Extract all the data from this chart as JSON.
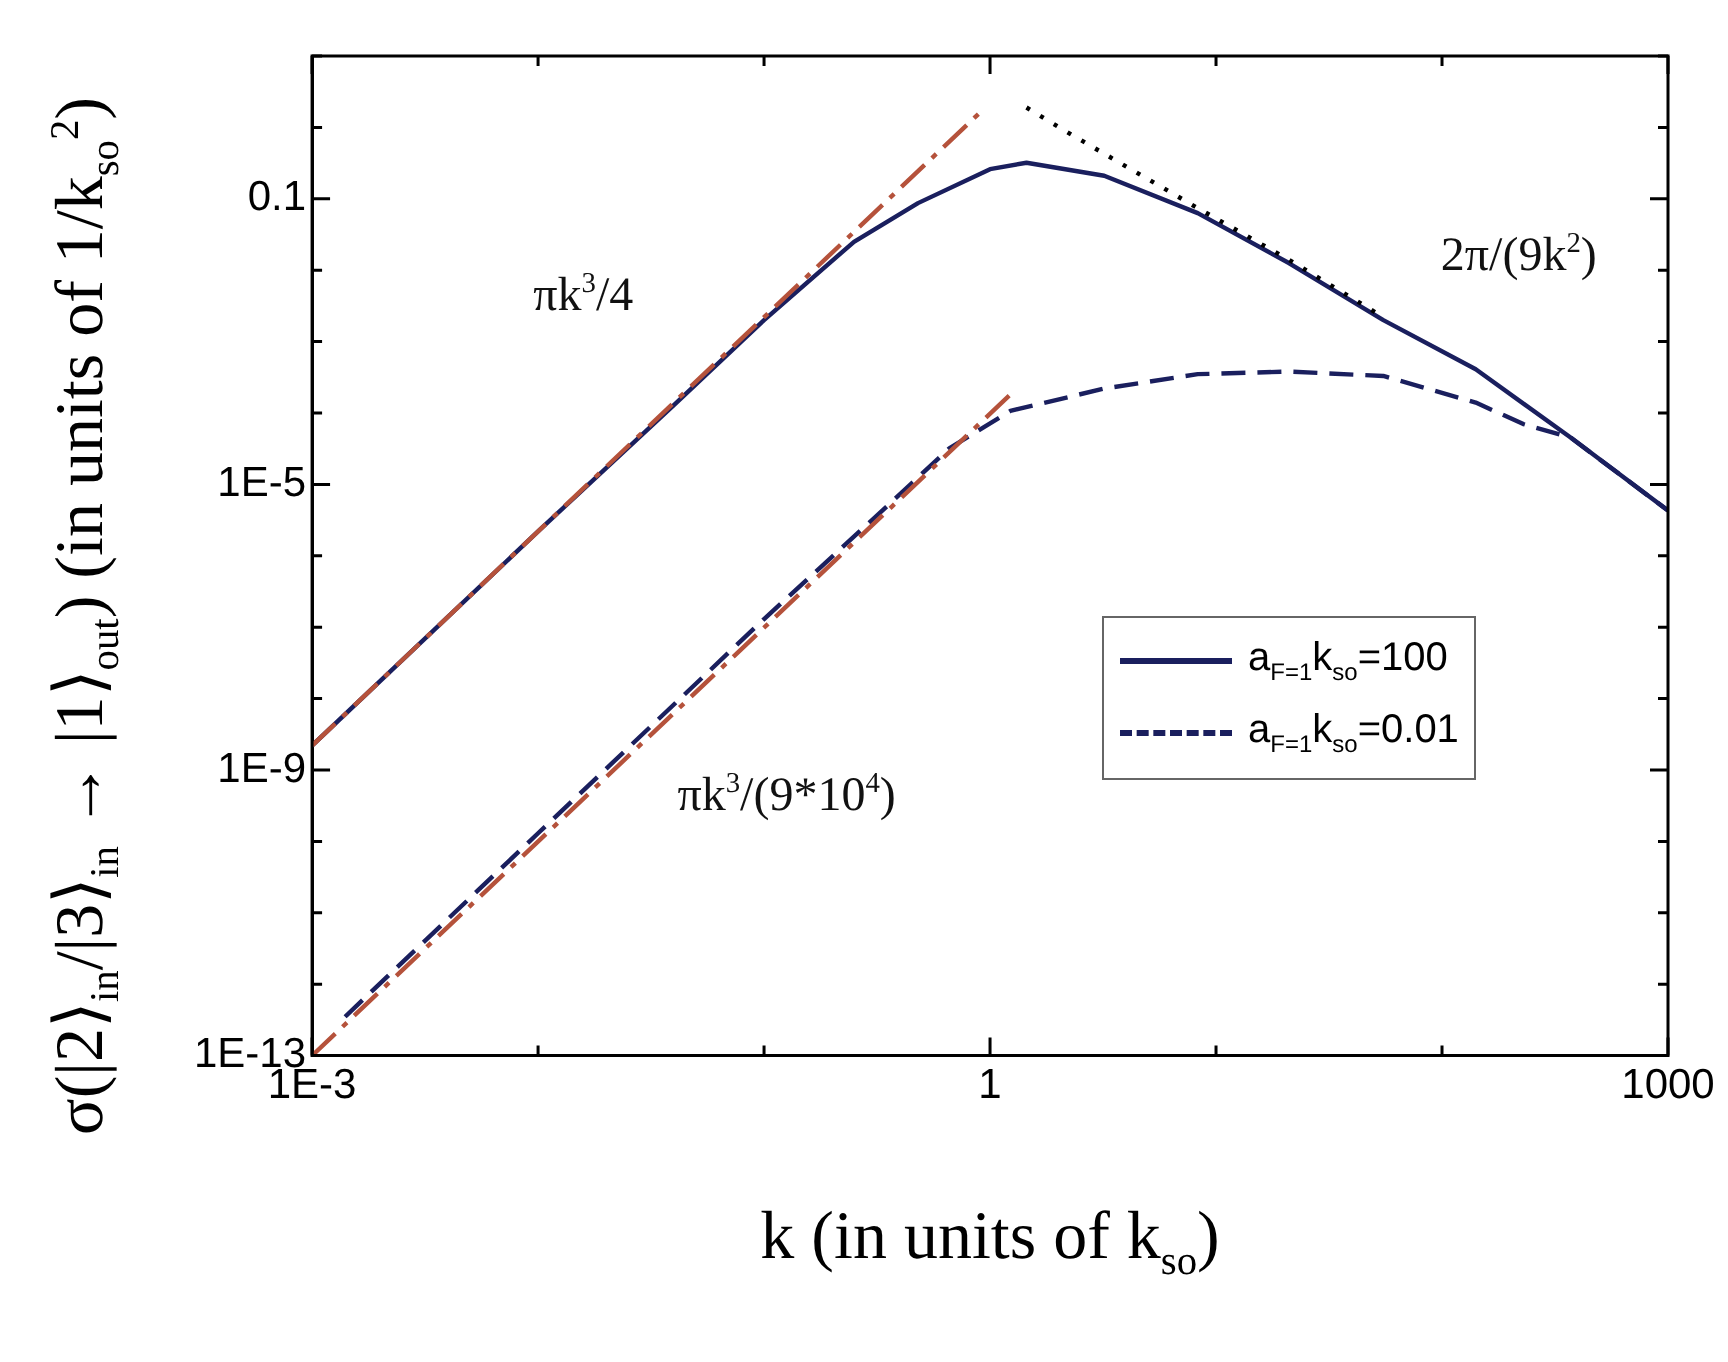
{
  "chart_data": {
    "type": "line",
    "xlabel": "k (in units of k$_{so}$)",
    "ylabel": "σ(|2⟩$_{in}$/|3⟩$_{in}$ → |1⟩$_{out}$) (in units of 1/k$_{so}$$^{2}$)",
    "log": "xy",
    "xlim": [
      0.001,
      1000
    ],
    "xticks": [
      {
        "value": 0.001,
        "label": "1E-3"
      },
      {
        "value": 0.01,
        "label": null
      },
      {
        "value": 0.1,
        "label": null
      },
      1,
      {
        "value": 10,
        "label": null
      },
      {
        "value": 100,
        "label": null
      },
      1000
    ],
    "ylim": [
      1e-13,
      10
    ],
    "yticks": [
      {
        "value": 1e-13,
        "label": "1E-13"
      },
      {
        "value": 1e-12,
        "label": null
      },
      {
        "value": 1e-11,
        "label": null
      },
      {
        "value": 1e-10,
        "label": null
      },
      {
        "value": 1e-09,
        "label": "1E-9"
      },
      {
        "value": 1e-08,
        "label": null
      },
      {
        "value": 1e-07,
        "label": null
      },
      {
        "value": 1e-06,
        "label": null
      },
      {
        "value": 1e-05,
        "label": "1E-5"
      },
      {
        "value": 0.0001,
        "label": null
      },
      {
        "value": 0.001,
        "label": null
      },
      {
        "value": 0.01,
        "label": null
      },
      0.1,
      {
        "value": 1,
        "label": null
      },
      {
        "value": 10,
        "label": null
      }
    ],
    "grid": false,
    "legend": "right",
    "marker": "none",
    "series": [
      {
        "color": "#b5523b",
        "line_style": "dashdot",
        "x": [
          0.001,
          0.89
        ],
        "values": [
          2.2e-09,
          1.55
        ]
      },
      {
        "color": "#b5523b",
        "line_style": "dashdot",
        "x": [
          0.001,
          1.29
        ],
        "values": [
          1e-13,
          0.00021
        ]
      },
      {
        "color": "#000000",
        "line_style": "dotted",
        "x": [
          1.45,
          2.1,
          8.3,
          21,
          55
        ],
        "values": [
          1.9,
          0.93,
          0.074,
          0.014,
          0.0022
        ]
      },
      {
        "name": "a$_{F=1}$k$_{so}$=100",
        "color": "#1a1f5e",
        "line_style": "solid",
        "x": [
          0.001,
          0.01,
          0.04,
          0.1,
          0.25,
          0.48,
          1,
          1.45,
          3.2,
          8.3,
          21,
          55,
          141,
          372,
          1000
        ],
        "values": [
          2.2e-09,
          2.2e-06,
          0.00013,
          0.002,
          0.025,
          0.087,
          0.26,
          0.32,
          0.21,
          0.063,
          0.0126,
          0.002,
          0.00041,
          4.5e-05,
          4.3e-06
        ]
      },
      {
        "name": "a$_{F=1}$k$_{so}$=0.01",
        "color": "#1a1f5e",
        "line_style": "dashed",
        "x": [
          0.0014,
          0.01,
          0.1,
          0.32,
          0.66,
          1.23,
          3.2,
          8.3,
          21,
          55,
          141,
          229,
          372,
          1000
        ],
        "values": [
          3.5e-13,
          1.3e-10,
          1.3e-07,
          3.8e-06,
          3.2e-05,
          0.000107,
          0.00022,
          0.00035,
          0.00038,
          0.00033,
          0.00014,
          7e-05,
          4.5e-05,
          4.3e-06
        ]
      }
    ],
    "annotations": [
      "πk$^{3}$/4",
      "2π/(9k$^{2}$)",
      "πk$^{3}$/(9*10$^{4}$)"
    ]
  }
}
